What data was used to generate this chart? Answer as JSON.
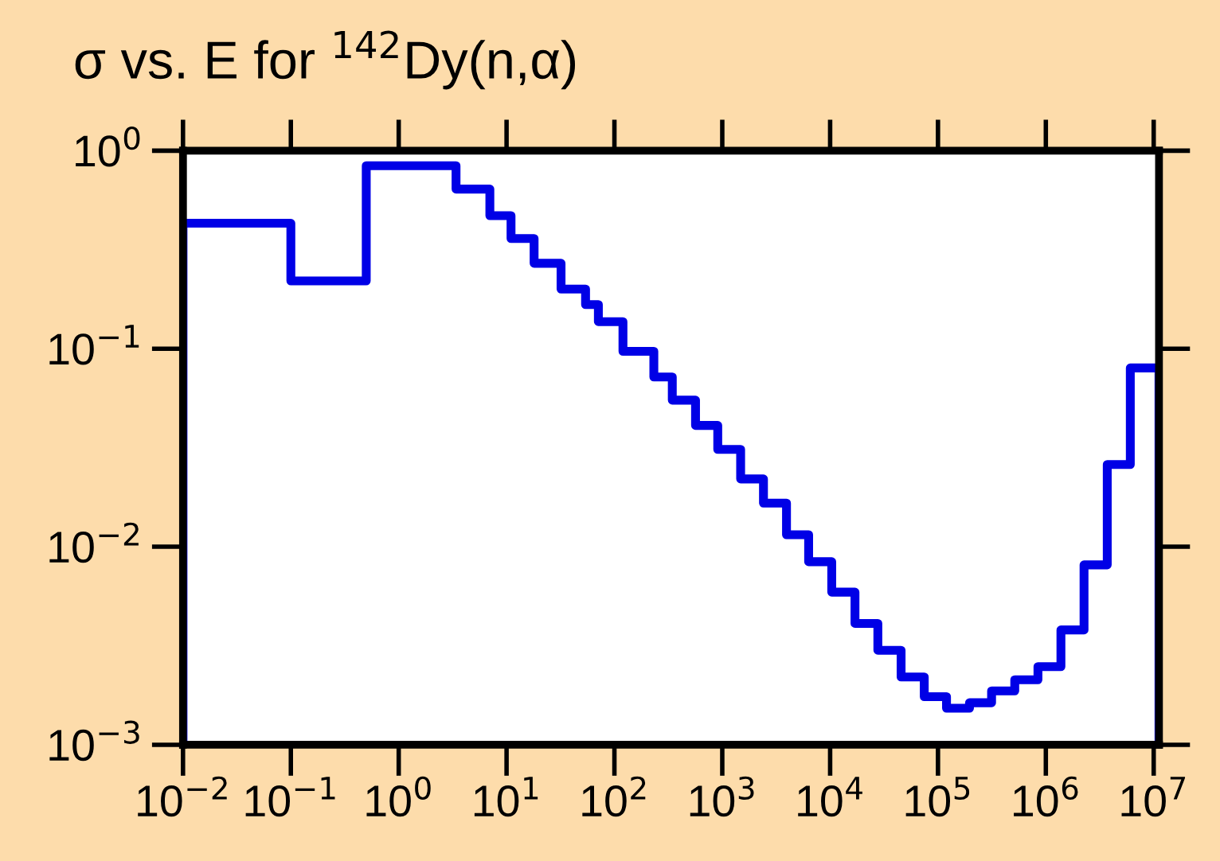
{
  "chart_data": {
    "type": "histogram",
    "title": "σ vs. E for $^{142}$Dy(n,α)",
    "bins": [
      0.01,
      0.1,
      0.5,
      3.4,
      7.0,
      11,
      18,
      32,
      54,
      71,
      120,
      232,
      344,
      565,
      908,
      1480,
      2410,
      3940,
      6320,
      10350,
      17000,
      27700,
      45500,
      74600,
      120000,
      196000,
      314000,
      515000,
      845000,
      1380000,
      2260000,
      3710000,
      6070000,
      11200000
    ],
    "values": [
      0.43,
      0.22,
      0.84,
      0.64,
      0.47,
      0.36,
      0.27,
      0.2,
      0.167,
      0.137,
      0.097,
      0.072,
      0.055,
      0.041,
      0.031,
      0.022,
      0.0166,
      0.0115,
      0.0084,
      0.0059,
      0.0041,
      0.003,
      0.0022,
      0.00175,
      0.00153,
      0.00163,
      0.00187,
      0.00213,
      0.00248,
      0.0038,
      0.0081,
      0.026,
      0.08
    ],
    "color": "#0000e6",
    "log": "xy",
    "grid": false,
    "xlim": [
      0.01,
      11200000
    ],
    "ylim": [
      0.001,
      1
    ],
    "xticks": [
      {
        "value": 0.01,
        "label": "10$^{−2}$"
      },
      {
        "value": 0.1,
        "label": "10$^{−1}$"
      },
      {
        "value": 1,
        "label": "10$^{0}$"
      },
      {
        "value": 10,
        "label": "10$^{1}$"
      },
      {
        "value": 100,
        "label": "10$^{2}$"
      },
      {
        "value": 1000,
        "label": "10$^{3}$"
      },
      {
        "value": 10000,
        "label": "10$^{4}$"
      },
      {
        "value": 100000,
        "label": "10$^{5}$"
      },
      {
        "value": 1000000,
        "label": "10$^{6}$"
      },
      {
        "value": 10000000,
        "label": "10$^{7}$"
      }
    ],
    "yticks": [
      {
        "value": 0.001,
        "label": "10$^{−3}$"
      },
      {
        "value": 0.01,
        "label": "10$^{−2}$"
      },
      {
        "value": 0.1,
        "label": "10$^{−1}$"
      },
      {
        "value": 1,
        "label": "10$^{0}$"
      }
    ]
  }
}
